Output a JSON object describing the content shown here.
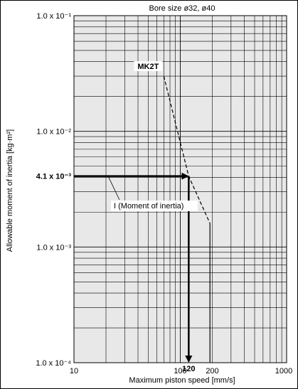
{
  "chart_data": {
    "type": "line",
    "title": "Bore size ø32, ø40",
    "xlabel": "Maximum piston speed [mm/s]",
    "ylabel": "Allowable moment of inertia [kg·m²]",
    "x_scale": "log",
    "y_scale": "log",
    "xlim": [
      10,
      1000
    ],
    "ylim": [
      0.0001,
      0.1
    ],
    "grid": true,
    "x_ticks": [
      {
        "value": 10,
        "label": "10"
      },
      {
        "value": 100,
        "label": "100"
      },
      {
        "value": 200,
        "label": "200"
      },
      {
        "value": 1000,
        "label": "1000"
      }
    ],
    "y_ticks": [
      {
        "value": 0.1,
        "label": "1.0 x 10⁻¹"
      },
      {
        "value": 0.01,
        "label": "1.0 x 10⁻²"
      },
      {
        "value": 0.001,
        "label": "1.0 x 10⁻³"
      },
      {
        "value": 0.0001,
        "label": "1.0 x 10⁻⁴"
      }
    ],
    "series": [
      {
        "name": "MK2T",
        "style": "dashed",
        "x": [
          70,
          120,
          190
        ],
        "y": [
          0.03,
          0.0041,
          0.0016
        ]
      },
      {
        "name": "",
        "style": "solid",
        "x": [
          190,
          190
        ],
        "y": [
          0.0016,
          0.0001
        ]
      }
    ],
    "annotations": {
      "example_value_label": "4.1 x 10⁻³",
      "example_value": 0.0041,
      "example_speed_label": "120",
      "example_speed": 120,
      "inertia_note": "I (Moment of inertia)"
    },
    "colors": {
      "line": "#000000",
      "plot_background": "#e8e8e8",
      "background": "#ffffff"
    }
  }
}
